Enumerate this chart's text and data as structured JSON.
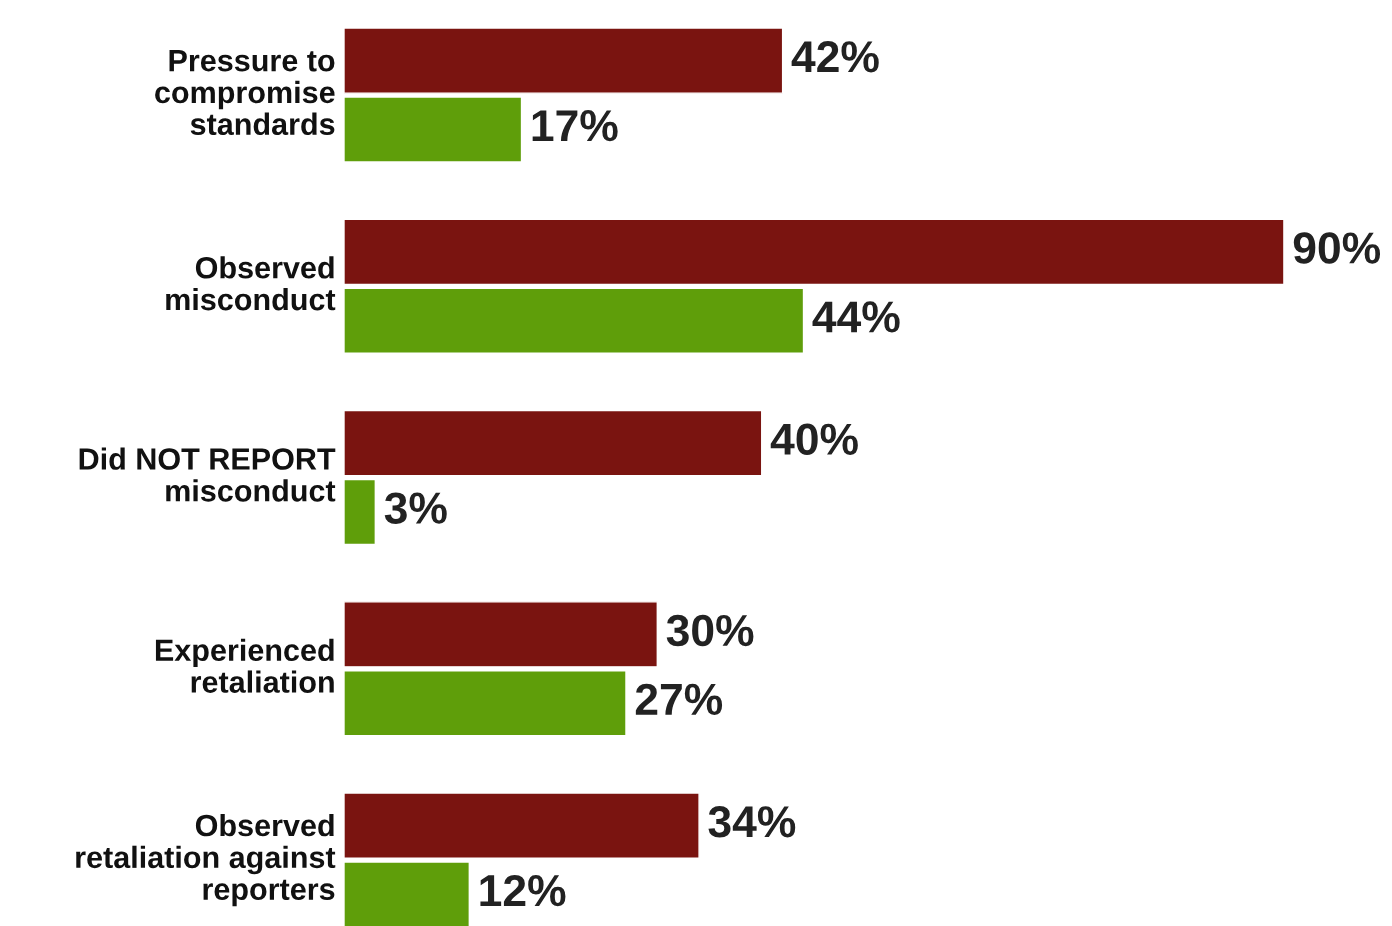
{
  "chart_data": {
    "type": "bar",
    "orientation": "horizontal",
    "categories": [
      "Pressure to\ncompromise\nstandards",
      "Observed\nmisconduct",
      "Did NOT REPORT\nmisconduct",
      "Experienced\nretaliation",
      "Observed\nretaliation against\nreporters"
    ],
    "series": [
      {
        "color": "#7a1410",
        "values": [
          42,
          90,
          40,
          30,
          34
        ],
        "value_labels": [
          "42%",
          "90%",
          "40%",
          "30%",
          "34%"
        ]
      },
      {
        "color": "#5f9e0a",
        "values": [
          17,
          44,
          3,
          27,
          12
        ],
        "value_labels": [
          "17%",
          "44%",
          "3%",
          "27%",
          "12%"
        ]
      }
    ]
  }
}
